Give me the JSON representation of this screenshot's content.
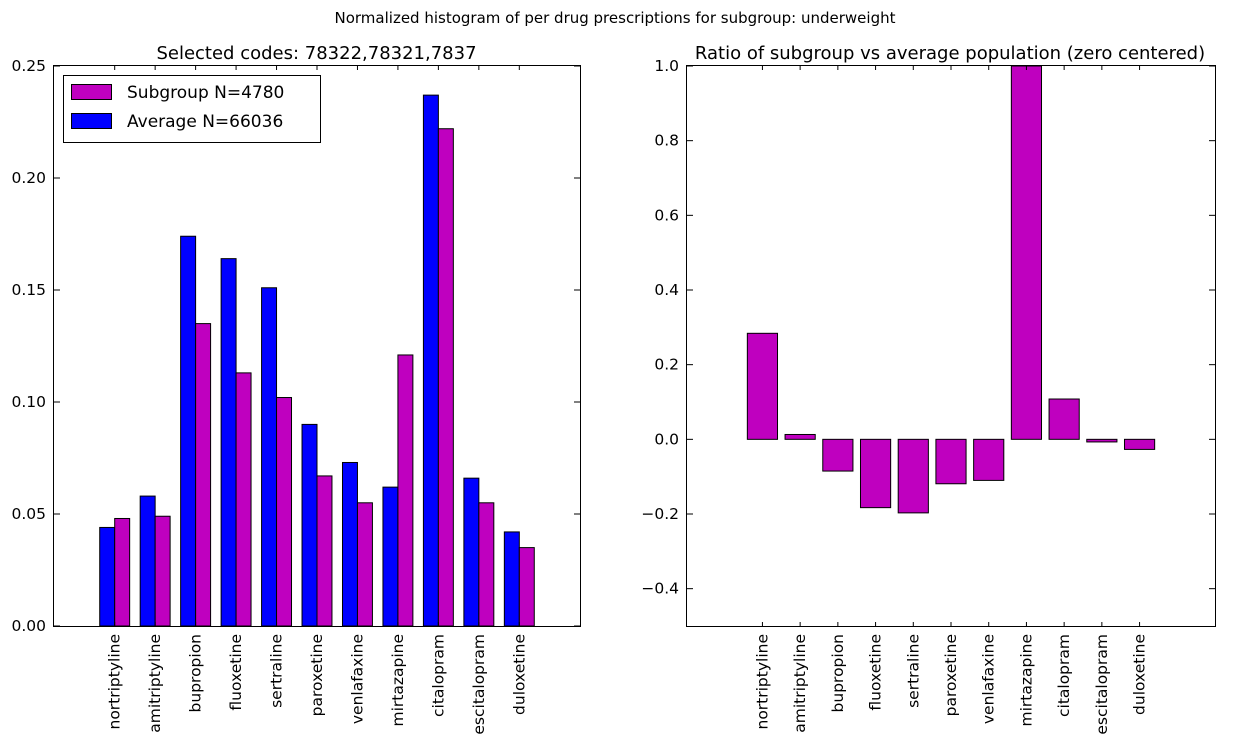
{
  "figure_title": "Normalized histogram of per drug prescriptions for subgroup: underweight",
  "chart_data": [
    {
      "type": "bar",
      "title": "Selected codes: 78322,78321,7837",
      "xlabel": "",
      "ylabel": "",
      "categories": [
        "nortriptyline",
        "amitriptyline",
        "bupropion",
        "fluoxetine",
        "sertraline",
        "paroxetine",
        "venlafaxine",
        "mirtazapine",
        "citalopram",
        "escitalopram",
        "duloxetine"
      ],
      "series": [
        {
          "name": "Subgroup N=4780",
          "color": "#bf00bf",
          "values": [
            0.048,
            0.049,
            0.135,
            0.113,
            0.102,
            0.067,
            0.055,
            0.121,
            0.222,
            0.055,
            0.035
          ]
        },
        {
          "name": "Average N=66036",
          "color": "#0000ff",
          "values": [
            0.044,
            0.058,
            0.174,
            0.164,
            0.151,
            0.09,
            0.073,
            0.062,
            0.237,
            0.066,
            0.042
          ]
        }
      ],
      "ylim": [
        0,
        0.25
      ],
      "yticks": [
        "0.00",
        "0.05",
        "0.10",
        "0.15",
        "0.20",
        "0.25"
      ],
      "legend_position": "top-left",
      "grid": false
    },
    {
      "type": "bar",
      "title": "Ratio of subgroup vs average population (zero centered)",
      "xlabel": "",
      "ylabel": "",
      "categories": [
        "nortriptyline",
        "amitriptyline",
        "bupropion",
        "fluoxetine",
        "sertraline",
        "paroxetine",
        "venlafaxine",
        "mirtazapine",
        "citalopram",
        "escitalopram",
        "duloxetine"
      ],
      "series": [
        {
          "color": "#bf00bf",
          "values": [
            0.284,
            0.013,
            -0.085,
            -0.183,
            -0.197,
            -0.119,
            -0.11,
            1.0,
            0.108,
            -0.007,
            -0.027
          ]
        }
      ],
      "ylim": [
        -0.5,
        1.0
      ],
      "yticks": [
        "−0.4",
        "−0.2",
        "0.0",
        "0.2",
        "0.4",
        "0.6",
        "0.8",
        "1.0"
      ],
      "grid": false
    }
  ]
}
